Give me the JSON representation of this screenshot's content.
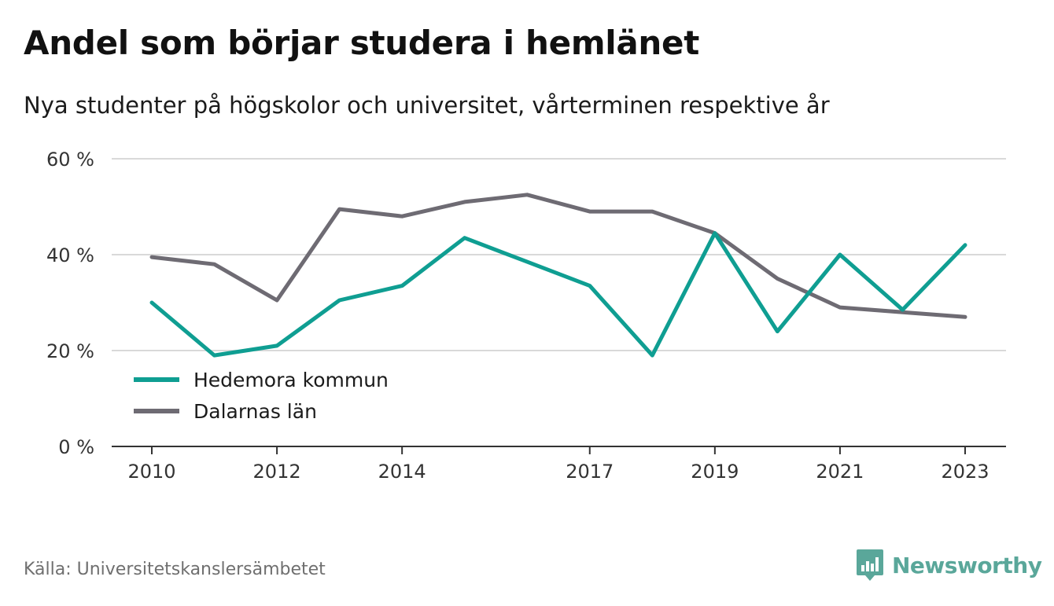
{
  "header": {
    "title": "Andel som börjar studera i hemlänet",
    "subtitle": "Nya studenter på högskolor och universitet, vårterminen respektive år"
  },
  "chart_data": {
    "type": "line",
    "x": [
      2010,
      2011,
      2012,
      2013,
      2014,
      2015,
      2016,
      2017,
      2018,
      2019,
      2020,
      2021,
      2022,
      2023
    ],
    "x_tick_labels": [
      "2010",
      "2012",
      "2014",
      "2017",
      "2019",
      "2021",
      "2023"
    ],
    "y_tick_labels": [
      "0 %",
      "20 %",
      "40 %",
      "60 %"
    ],
    "ylim": [
      0,
      60
    ],
    "y_unit": "%",
    "grid": "horizontal",
    "legend_position": "lower-left",
    "series": [
      {
        "name": "Hedemora kommun",
        "color": "#0f9e92",
        "values": [
          30,
          19,
          21,
          30.5,
          33.5,
          43.5,
          38.5,
          33.5,
          19,
          44.5,
          24,
          40,
          28.5,
          42
        ]
      },
      {
        "name": "Dalarnas län",
        "color": "#6e6b73",
        "values": [
          39.5,
          38,
          30.5,
          49.5,
          48,
          51,
          52.5,
          49,
          49,
          44.5,
          35,
          29,
          28,
          27
        ]
      }
    ]
  },
  "footer": {
    "source": "Källa: Universitetskanslersämbetet",
    "brand": "Newsworthy",
    "brand_color": "#5aa79a"
  }
}
